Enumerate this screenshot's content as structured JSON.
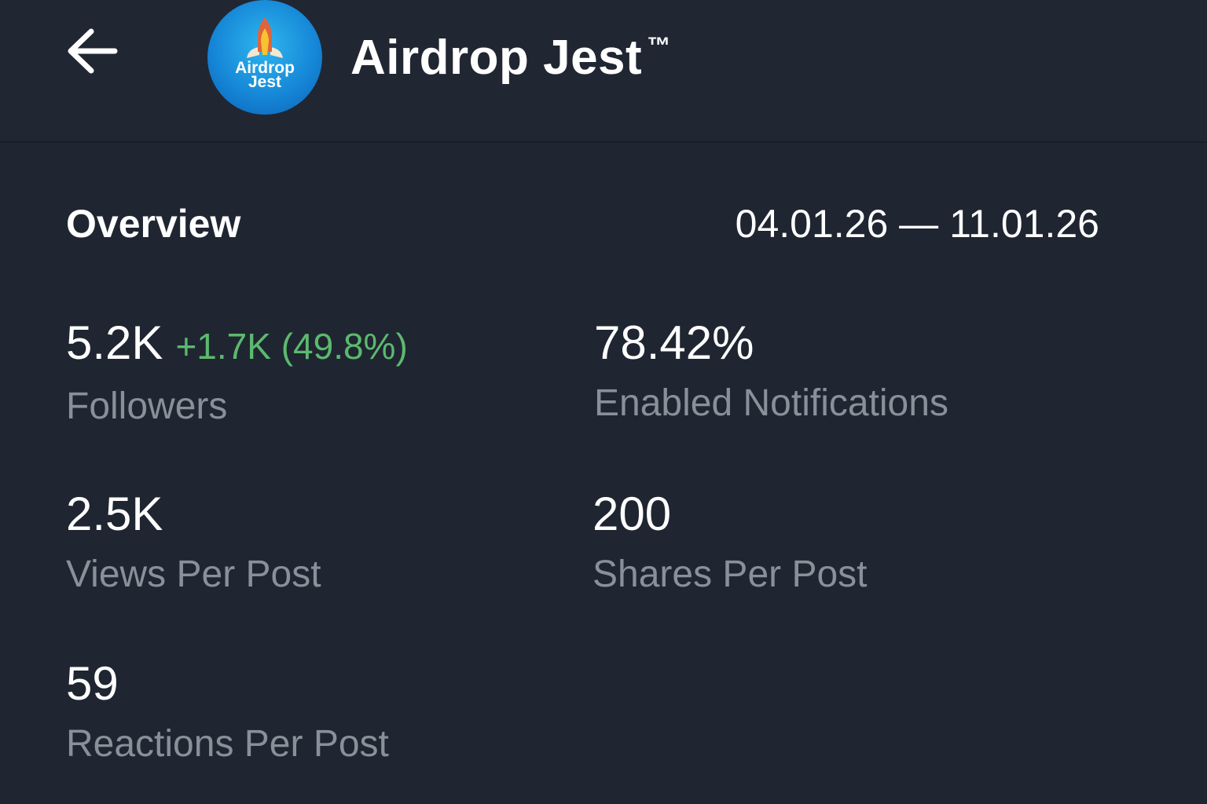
{
  "header": {
    "title": "Airdrop Jest",
    "trademark": "™",
    "logo_text_line1": "Airdrop",
    "logo_text_line2": "Jest",
    "back_icon": "arrow-left-icon"
  },
  "overview": {
    "title": "Overview",
    "date_range": "04.01.26 — 11.01.26"
  },
  "stats": [
    {
      "value": "5.2K",
      "delta": "+1.7K (49.8%)",
      "label": "Followers"
    },
    {
      "value": "78.42%",
      "label": "Enabled Notifications"
    },
    {
      "value": "2.5K",
      "label": "Views Per Post"
    },
    {
      "value": "200",
      "label": "Shares Per Post"
    },
    {
      "value": "59",
      "label": "Reactions Per Post"
    }
  ],
  "colors": {
    "background": "#1f2631",
    "positive": "#5cb96f",
    "label": "#8a9099"
  }
}
